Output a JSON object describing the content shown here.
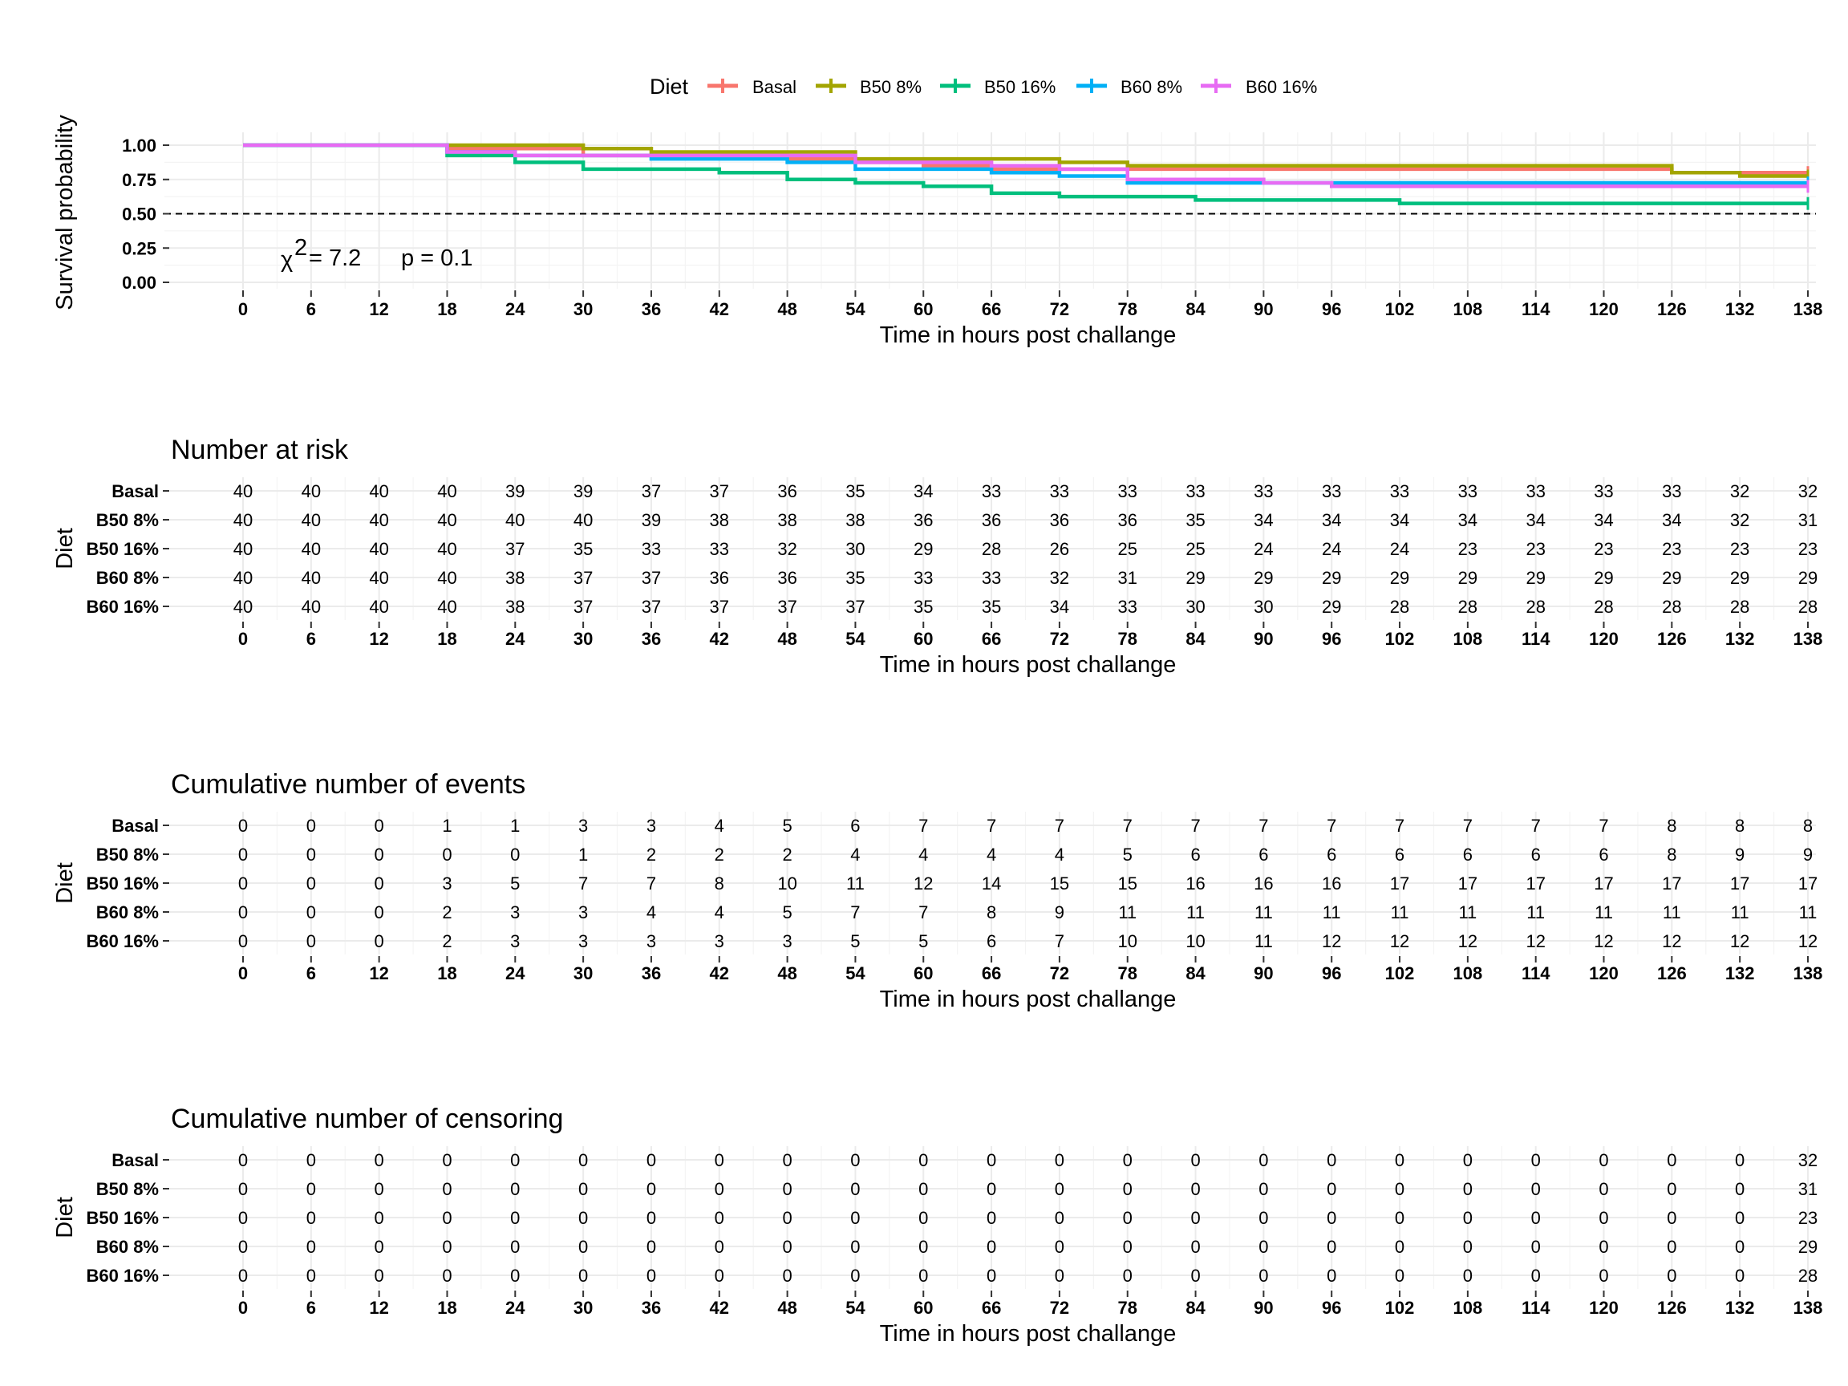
{
  "chart_data": [
    {
      "type": "line",
      "subtype": "kaplan-meier survival curve",
      "legend": {
        "title": "Diet",
        "position": "top",
        "entries": [
          "Basal",
          "B50 8%",
          "B50 16%",
          "B60 8%",
          "B60 16%"
        ]
      },
      "xlabel": "Time in hours post challange",
      "ylabel": "Survival probability",
      "xlim": [
        0,
        138
      ],
      "ylim": [
        0,
        1
      ],
      "xticks": [
        "0",
        "6",
        "12",
        "18",
        "24",
        "30",
        "36",
        "42",
        "48",
        "54",
        "60",
        "66",
        "72",
        "78",
        "84",
        "90",
        "96",
        "102",
        "108",
        "114",
        "120",
        "126",
        "132",
        "138"
      ],
      "yticks": [
        "0.00",
        "0.25",
        "0.50",
        "0.75",
        "1.00"
      ],
      "reference_line": 0.5,
      "annotation": {
        "chisq_label": "χ",
        "chisq_exp": "2",
        "chisq_value": "= 7.2",
        "p_value": "p = 0.1"
      },
      "series": [
        {
          "name": "Basal",
          "color": "#F8766D",
          "times": [
            0,
            18,
            24,
            30,
            36,
            48,
            54,
            60,
            66,
            126,
            138
          ],
          "survival": [
            1.0,
            0.975,
            0.975,
            0.925,
            0.925,
            0.9,
            0.875,
            0.85,
            0.825,
            0.8,
            0.8
          ]
        },
        {
          "name": "B50 8%",
          "color": "#A3A500",
          "times": [
            0,
            30,
            36,
            54,
            72,
            78,
            84,
            126,
            132,
            138
          ],
          "survival": [
            1.0,
            0.975,
            0.95,
            0.9,
            0.875,
            0.85,
            0.85,
            0.8,
            0.775,
            0.775
          ]
        },
        {
          "name": "B50 16%",
          "color": "#00BF7D",
          "times": [
            0,
            18,
            24,
            30,
            42,
            48,
            54,
            60,
            66,
            72,
            84,
            90,
            102,
            138
          ],
          "survival": [
            1.0,
            0.925,
            0.875,
            0.825,
            0.8,
            0.75,
            0.725,
            0.7,
            0.65,
            0.625,
            0.6,
            0.6,
            0.575,
            0.575
          ]
        },
        {
          "name": "B60 8%",
          "color": "#00B0F6",
          "times": [
            0,
            18,
            24,
            36,
            48,
            54,
            60,
            66,
            72,
            78,
            84,
            138
          ],
          "survival": [
            1.0,
            0.95,
            0.925,
            0.9,
            0.875,
            0.825,
            0.825,
            0.8,
            0.775,
            0.725,
            0.725,
            0.725
          ]
        },
        {
          "name": "B60 16%",
          "color": "#E76BF3",
          "times": [
            0,
            18,
            24,
            48,
            54,
            60,
            66,
            72,
            78,
            90,
            96,
            138
          ],
          "survival": [
            1.0,
            0.95,
            0.925,
            0.925,
            0.875,
            0.875,
            0.85,
            0.825,
            0.75,
            0.725,
            0.7,
            0.7
          ]
        }
      ]
    },
    {
      "type": "table",
      "title": "Number at risk",
      "ylabel": "Diet",
      "xlabel": "Time in hours post challange",
      "xticks": [
        "0",
        "6",
        "12",
        "18",
        "24",
        "30",
        "36",
        "42",
        "48",
        "54",
        "60",
        "66",
        "72",
        "78",
        "84",
        "90",
        "96",
        "102",
        "108",
        "114",
        "120",
        "126",
        "132",
        "138"
      ],
      "rows": [
        {
          "label": "Basal",
          "values": [
            "40",
            "40",
            "40",
            "40",
            "39",
            "39",
            "37",
            "37",
            "36",
            "35",
            "34",
            "33",
            "33",
            "33",
            "33",
            "33",
            "33",
            "33",
            "33",
            "33",
            "33",
            "33",
            "32",
            "32"
          ]
        },
        {
          "label": "B50 8%",
          "values": [
            "40",
            "40",
            "40",
            "40",
            "40",
            "40",
            "39",
            "38",
            "38",
            "38",
            "36",
            "36",
            "36",
            "36",
            "35",
            "34",
            "34",
            "34",
            "34",
            "34",
            "34",
            "34",
            "32",
            "31"
          ]
        },
        {
          "label": "B50 16%",
          "values": [
            "40",
            "40",
            "40",
            "40",
            "37",
            "35",
            "33",
            "33",
            "32",
            "30",
            "29",
            "28",
            "26",
            "25",
            "25",
            "24",
            "24",
            "24",
            "23",
            "23",
            "23",
            "23",
            "23",
            "23"
          ]
        },
        {
          "label": "B60 8%",
          "values": [
            "40",
            "40",
            "40",
            "40",
            "38",
            "37",
            "37",
            "36",
            "36",
            "35",
            "33",
            "33",
            "32",
            "31",
            "29",
            "29",
            "29",
            "29",
            "29",
            "29",
            "29",
            "29",
            "29",
            "29"
          ]
        },
        {
          "label": "B60 16%",
          "values": [
            "40",
            "40",
            "40",
            "40",
            "38",
            "37",
            "37",
            "37",
            "37",
            "37",
            "35",
            "35",
            "34",
            "33",
            "30",
            "30",
            "29",
            "28",
            "28",
            "28",
            "28",
            "28",
            "28",
            "28"
          ]
        }
      ]
    },
    {
      "type": "table",
      "title": "Cumulative number of events",
      "ylabel": "Diet",
      "xlabel": "Time in hours post challange",
      "xticks": [
        "0",
        "6",
        "12",
        "18",
        "24",
        "30",
        "36",
        "42",
        "48",
        "54",
        "60",
        "66",
        "72",
        "78",
        "84",
        "90",
        "96",
        "102",
        "108",
        "114",
        "120",
        "126",
        "132",
        "138"
      ],
      "rows": [
        {
          "label": "Basal",
          "values": [
            "0",
            "0",
            "0",
            "1",
            "1",
            "3",
            "3",
            "4",
            "5",
            "6",
            "7",
            "7",
            "7",
            "7",
            "7",
            "7",
            "7",
            "7",
            "7",
            "7",
            "7",
            "8",
            "8",
            "8"
          ]
        },
        {
          "label": "B50 8%",
          "values": [
            "0",
            "0",
            "0",
            "0",
            "0",
            "1",
            "2",
            "2",
            "2",
            "4",
            "4",
            "4",
            "4",
            "5",
            "6",
            "6",
            "6",
            "6",
            "6",
            "6",
            "6",
            "8",
            "9",
            "9"
          ]
        },
        {
          "label": "B50 16%",
          "values": [
            "0",
            "0",
            "0",
            "3",
            "5",
            "7",
            "7",
            "8",
            "10",
            "11",
            "12",
            "14",
            "15",
            "15",
            "16",
            "16",
            "16",
            "17",
            "17",
            "17",
            "17",
            "17",
            "17",
            "17"
          ]
        },
        {
          "label": "B60 8%",
          "values": [
            "0",
            "0",
            "0",
            "2",
            "3",
            "3",
            "4",
            "4",
            "5",
            "7",
            "7",
            "8",
            "9",
            "11",
            "11",
            "11",
            "11",
            "11",
            "11",
            "11",
            "11",
            "11",
            "11",
            "11"
          ]
        },
        {
          "label": "B60 16%",
          "values": [
            "0",
            "0",
            "0",
            "2",
            "3",
            "3",
            "3",
            "3",
            "3",
            "5",
            "5",
            "6",
            "7",
            "10",
            "10",
            "11",
            "12",
            "12",
            "12",
            "12",
            "12",
            "12",
            "12",
            "12"
          ]
        }
      ]
    },
    {
      "type": "table",
      "title": "Cumulative number of censoring",
      "ylabel": "Diet",
      "xlabel": "Time in hours post challange",
      "xticks": [
        "0",
        "6",
        "12",
        "18",
        "24",
        "30",
        "36",
        "42",
        "48",
        "54",
        "60",
        "66",
        "72",
        "78",
        "84",
        "90",
        "96",
        "102",
        "108",
        "114",
        "120",
        "126",
        "132",
        "138"
      ],
      "rows": [
        {
          "label": "Basal",
          "values": [
            "0",
            "0",
            "0",
            "0",
            "0",
            "0",
            "0",
            "0",
            "0",
            "0",
            "0",
            "0",
            "0",
            "0",
            "0",
            "0",
            "0",
            "0",
            "0",
            "0",
            "0",
            "0",
            "0",
            "32"
          ]
        },
        {
          "label": "B50 8%",
          "values": [
            "0",
            "0",
            "0",
            "0",
            "0",
            "0",
            "0",
            "0",
            "0",
            "0",
            "0",
            "0",
            "0",
            "0",
            "0",
            "0",
            "0",
            "0",
            "0",
            "0",
            "0",
            "0",
            "0",
            "31"
          ]
        },
        {
          "label": "B50 16%",
          "values": [
            "0",
            "0",
            "0",
            "0",
            "0",
            "0",
            "0",
            "0",
            "0",
            "0",
            "0",
            "0",
            "0",
            "0",
            "0",
            "0",
            "0",
            "0",
            "0",
            "0",
            "0",
            "0",
            "0",
            "23"
          ]
        },
        {
          "label": "B60 8%",
          "values": [
            "0",
            "0",
            "0",
            "0",
            "0",
            "0",
            "0",
            "0",
            "0",
            "0",
            "0",
            "0",
            "0",
            "0",
            "0",
            "0",
            "0",
            "0",
            "0",
            "0",
            "0",
            "0",
            "0",
            "29"
          ]
        },
        {
          "label": "B60 16%",
          "values": [
            "0",
            "0",
            "0",
            "0",
            "0",
            "0",
            "0",
            "0",
            "0",
            "0",
            "0",
            "0",
            "0",
            "0",
            "0",
            "0",
            "0",
            "0",
            "0",
            "0",
            "0",
            "0",
            "0",
            "28"
          ]
        }
      ]
    }
  ]
}
